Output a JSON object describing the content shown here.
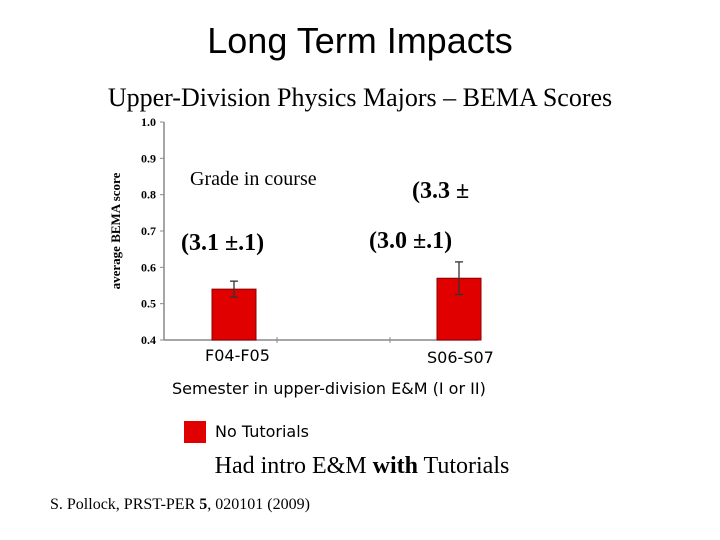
{
  "slide": {
    "title": "Long Term Impacts",
    "subtitle": "Upper-Division Physics Majors – BEMA Scores",
    "note_pre": "Had intro E&M ",
    "note_bold": "with",
    "note_post": " Tutorials",
    "citation_pre": "S. Pollock, PRST-PER ",
    "citation_bold": "5",
    "citation_post": ", 020101 (2009)"
  },
  "chart_data": {
    "type": "bar",
    "title": "",
    "xlabel": "Semester in upper-division E&M (I or II)",
    "ylabel": "average BEMA score",
    "ylim": [
      0.4,
      1.0
    ],
    "yticks": [
      "0.4",
      "0.5",
      "0.6",
      "0.7",
      "0.8",
      "0.9",
      "1.0"
    ],
    "categories": [
      "F04-F05",
      "S06-S07"
    ],
    "series": [
      {
        "name": "No Tutorials",
        "color": "#e00000",
        "values": [
          0.54,
          0.57
        ],
        "error": [
          0.022,
          0.045
        ]
      }
    ],
    "annotations": {
      "grade_header": "Grade in course",
      "grades": [
        "(3.1 ±.1)",
        "(3.0 ±.1)",
        "(3.3 ±"
      ]
    },
    "legend": {
      "placement": "bottom-left",
      "label": "No Tutorials",
      "color": "#e00000"
    }
  }
}
